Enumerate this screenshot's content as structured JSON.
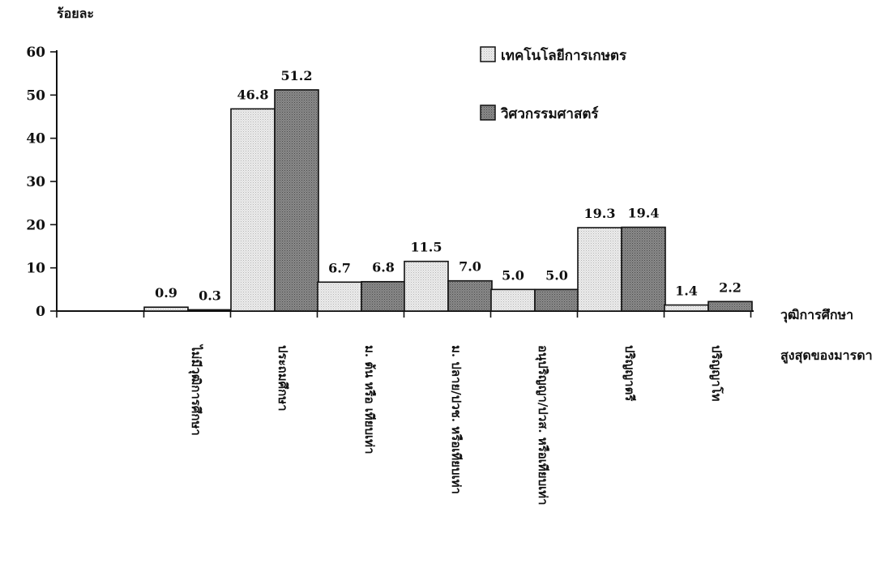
{
  "chart_data": {
    "type": "bar",
    "title": "",
    "ylabel": "ร้อยละ",
    "xlabel": [
      "วุฒิการศึกษา",
      "สูงสุดของมารดา"
    ],
    "ylim": [
      0,
      60
    ],
    "yticks": [
      0,
      10,
      20,
      30,
      40,
      50,
      60
    ],
    "categories": [
      "ไม่มีวุฒิการศึกษา",
      "ประถมศึกษา",
      "ม. ต้น หรือ เทียบเท่า",
      "ม. ปลาย/ปวช. หรือเทียบเท่า",
      "อนุปริญญา/ปวส. หรือเทียบเท่า",
      "ปริญญาตรี",
      "ปริญญาโท"
    ],
    "series": [
      {
        "name": "เทคโนโลยีการเกษตร",
        "values": [
          0.9,
          46.8,
          6.7,
          11.5,
          5.0,
          19.3,
          1.4
        ]
      },
      {
        "name": "วิศวกรรมศาสตร์",
        "values": [
          0.3,
          51.2,
          6.8,
          7.0,
          5.0,
          19.4,
          2.2
        ]
      }
    ],
    "value_labels": [
      [
        "0.9",
        "46.8",
        "6.7",
        "11.5",
        "5.0",
        "19.3",
        "1.4"
      ],
      [
        "0.3",
        "51.2",
        "6.8",
        "7.0",
        "5.0",
        "19.4",
        "2.2"
      ]
    ],
    "legend_position": "top-right",
    "grid": false,
    "colors": {
      "light": "#e6e6e6",
      "dark": "#7a7a7a"
    }
  }
}
